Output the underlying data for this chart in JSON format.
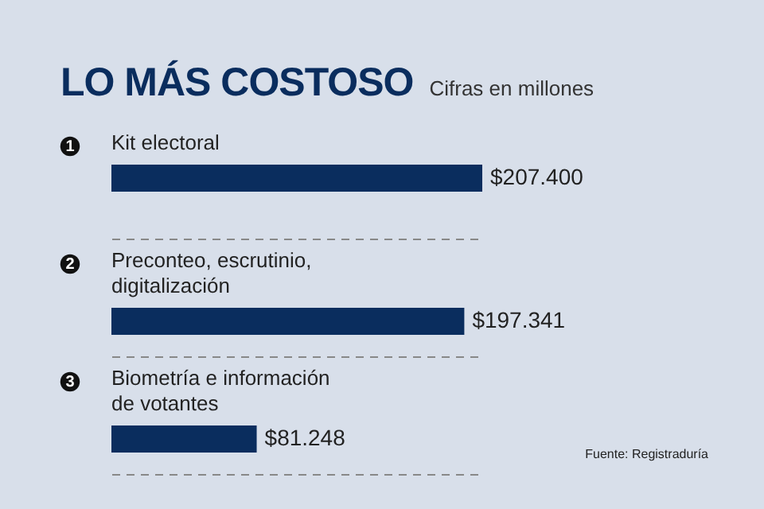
{
  "chart_data": {
    "type": "bar",
    "orientation": "horizontal",
    "title": "LO MÁS COSTOSO",
    "subtitle": "Cifras en millones",
    "categories": [
      "Kit electoral",
      "Preconteo, escrutinio, digitalización",
      "Biometría e información de votantes"
    ],
    "values": [
      207400,
      197341,
      81248
    ],
    "value_labels": [
      "$207.400",
      "$197.341",
      "$81.248"
    ],
    "color": "#0a2d5e",
    "grid": "y",
    "annotations": [
      "1",
      "2",
      "3",
      "Fuente: Registraduría"
    ]
  }
}
